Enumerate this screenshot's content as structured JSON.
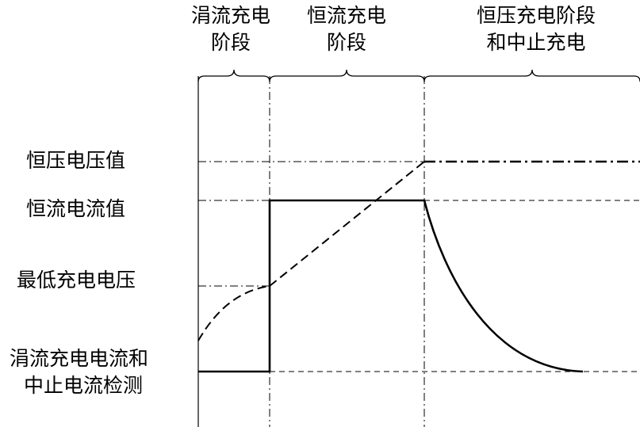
{
  "phases": [
    {
      "line1": "涓流充电",
      "line2": "阶段"
    },
    {
      "line1": "恒流充电",
      "line2": "阶段"
    },
    {
      "line1": "恒压充电阶段",
      "line2": "和中止充电"
    }
  ],
  "levels": {
    "cv_voltage": "恒压电压值",
    "cc_current": "恒流电流值",
    "min_voltage": "最低充电电压",
    "trickle_current_line1": "涓流充电电流和",
    "trickle_current_line2": "中止电流检测"
  }
}
